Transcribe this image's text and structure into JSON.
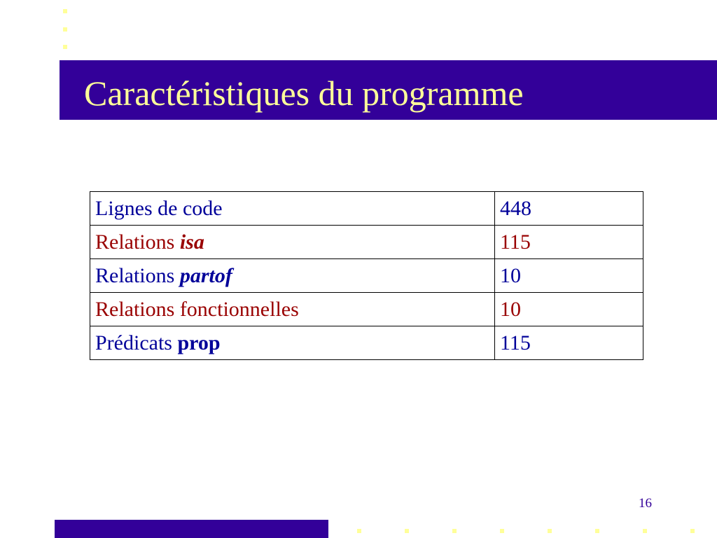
{
  "colors": {
    "accent": "#330099",
    "title_text": "#ffff99",
    "row_blue": "#000099",
    "row_red": "#990000"
  },
  "slide": {
    "title": "Caractéristiques du programme",
    "page_number": "16"
  },
  "table": {
    "rows": [
      {
        "label": "Lignes de code",
        "emph": "",
        "value": "448"
      },
      {
        "label": "Relations ",
        "emph": "isa",
        "value": "115"
      },
      {
        "label": "Relations ",
        "emph": "partof",
        "value": "10"
      },
      {
        "label": "Relations fonctionnelles",
        "emph": "",
        "value": "10"
      },
      {
        "label": "Prédicats ",
        "emph": "prop",
        "value": "115"
      }
    ]
  }
}
